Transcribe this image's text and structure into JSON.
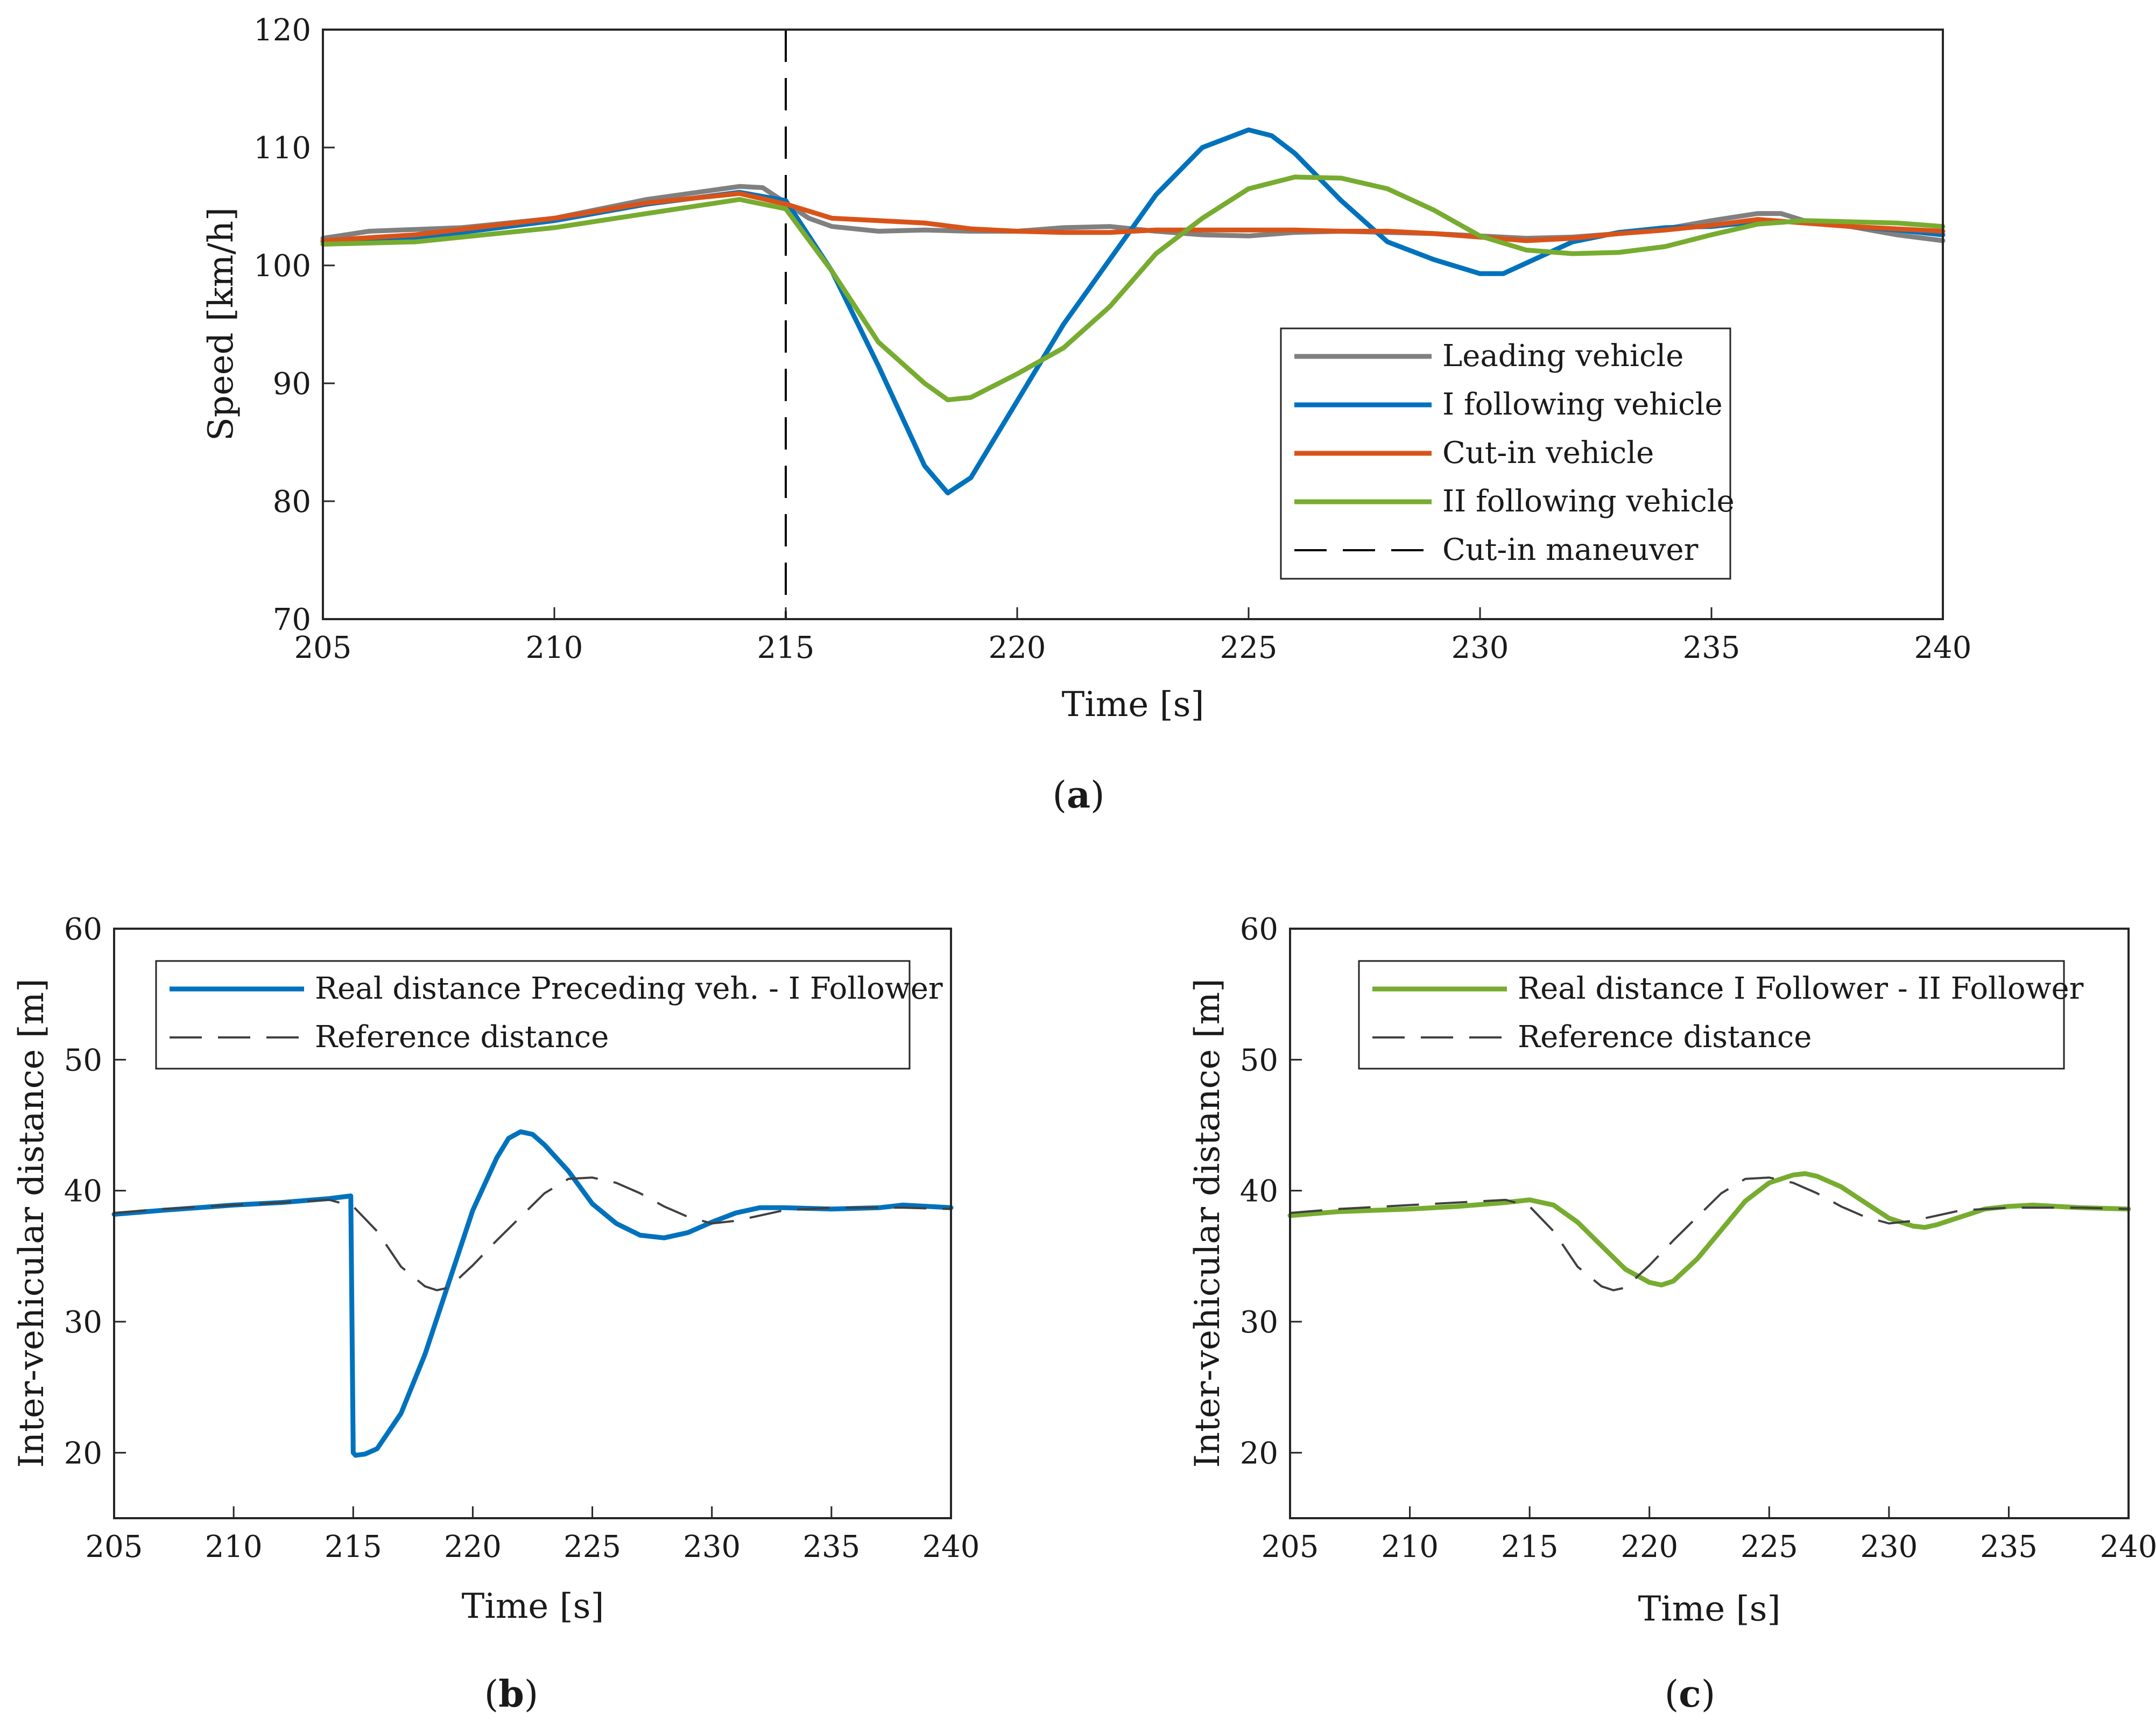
{
  "colors": {
    "leading": "#808080",
    "follower1": "#0072BD",
    "cutin": "#D95319",
    "follower2": "#77AC30",
    "reference": "#404040",
    "maneuver": "#000000"
  },
  "chart_data": [
    {
      "id": "a",
      "type": "line",
      "caption_open": "(",
      "caption_letter": "a",
      "caption_close": ")",
      "xlabel": "Time [s]",
      "ylabel": "Speed [km/h]",
      "xlim": [
        205,
        240
      ],
      "ylim": [
        70,
        120
      ],
      "xticks": [
        205,
        210,
        215,
        220,
        225,
        230,
        235,
        240
      ],
      "yticks": [
        70,
        80,
        90,
        100,
        110,
        120
      ],
      "legend_position": "center-right",
      "vline": {
        "x": 215,
        "label": "Cut-in maneuver"
      },
      "series": [
        {
          "name": "Leading vehicle",
          "color_key": "leading",
          "x": [
            205,
            206,
            208,
            210,
            212,
            214,
            214.5,
            215,
            215.5,
            216,
            217,
            218,
            219,
            220,
            221,
            222,
            223,
            224,
            225,
            226,
            227,
            228,
            229,
            230,
            231,
            232,
            233,
            234,
            235,
            236,
            236.5,
            237,
            238,
            239,
            240
          ],
          "y": [
            102.3,
            102.9,
            103.2,
            104.0,
            105.6,
            106.7,
            106.6,
            105.3,
            104.0,
            103.3,
            102.9,
            103.0,
            102.9,
            102.9,
            103.2,
            103.3,
            102.9,
            102.6,
            102.5,
            102.8,
            102.9,
            102.8,
            102.7,
            102.5,
            102.3,
            102.4,
            102.7,
            103.1,
            103.8,
            104.4,
            104.4,
            103.8,
            103.3,
            102.6,
            102.1
          ]
        },
        {
          "name": "I following vehicle",
          "color_key": "follower1",
          "x": [
            205,
            207,
            210,
            212,
            214,
            215,
            216,
            217,
            218,
            218.5,
            219,
            220,
            221,
            222,
            223,
            224,
            225,
            225.5,
            226,
            227,
            228,
            229,
            230,
            230.5,
            231,
            232,
            233,
            234,
            235,
            236,
            237,
            238,
            239,
            240
          ],
          "y": [
            102.0,
            102.3,
            103.8,
            105.2,
            106.2,
            105.5,
            99.5,
            91.5,
            83.0,
            80.7,
            82.0,
            88.5,
            95.0,
            100.5,
            106.0,
            110.0,
            111.5,
            111.0,
            109.5,
            105.5,
            102.0,
            100.5,
            99.3,
            99.3,
            100.2,
            102.0,
            102.8,
            103.2,
            103.3,
            103.7,
            103.7,
            103.3,
            103.0,
            102.6
          ]
        },
        {
          "name": "Cut-in vehicle",
          "color_key": "cutin",
          "x": [
            205,
            207,
            210,
            212,
            214,
            215,
            216,
            217,
            218,
            219,
            220,
            221,
            222,
            223,
            224,
            225,
            226,
            227,
            228,
            229,
            230,
            231,
            232,
            233,
            234,
            235,
            236,
            237,
            238,
            239,
            240
          ],
          "y": [
            102.1,
            102.6,
            104.0,
            105.3,
            106.1,
            105.2,
            104.0,
            103.8,
            103.6,
            103.1,
            102.9,
            102.8,
            102.8,
            103.0,
            103.0,
            103.0,
            103.0,
            102.9,
            102.9,
            102.7,
            102.4,
            102.1,
            102.3,
            102.7,
            103.0,
            103.4,
            103.9,
            103.6,
            103.3,
            103.1,
            102.9
          ]
        },
        {
          "name": "II following vehicle",
          "color_key": "follower2",
          "x": [
            205,
            207,
            210,
            212,
            214,
            215,
            216,
            217,
            218,
            218.5,
            219,
            220,
            221,
            222,
            223,
            224,
            225,
            226,
            227,
            228,
            229,
            230,
            231,
            232,
            233,
            234,
            235,
            236,
            237,
            238,
            239,
            240
          ],
          "y": [
            101.8,
            102.0,
            103.2,
            104.4,
            105.6,
            104.8,
            99.5,
            93.5,
            90.0,
            88.6,
            88.8,
            90.8,
            93.0,
            96.5,
            101.0,
            104.0,
            106.5,
            107.5,
            107.4,
            106.5,
            104.7,
            102.5,
            101.3,
            101.0,
            101.1,
            101.6,
            102.6,
            103.5,
            103.8,
            103.7,
            103.6,
            103.3
          ]
        }
      ]
    },
    {
      "id": "b",
      "type": "line",
      "caption_open": "(",
      "caption_letter": "b",
      "caption_close": ")",
      "xlabel": "Time [s]",
      "ylabel": "Inter-vehicular distance [m]",
      "xlim": [
        205,
        240
      ],
      "ylim": [
        15,
        60
      ],
      "xticks": [
        205,
        210,
        215,
        220,
        225,
        230,
        235,
        240
      ],
      "yticks": [
        20,
        30,
        40,
        50,
        60
      ],
      "legend_position": "top",
      "series": [
        {
          "name": "Real distance Preceding veh. - I Follower",
          "color_key": "follower1",
          "x": [
            205,
            207,
            210,
            212,
            214,
            214.9,
            215.0,
            215.1,
            215.5,
            216,
            217,
            218,
            219,
            220,
            221,
            221.5,
            222,
            222.5,
            223,
            224,
            225,
            226,
            227,
            228,
            229,
            230,
            231,
            232,
            233,
            235,
            237,
            238,
            240
          ],
          "y": [
            38.2,
            38.5,
            38.9,
            39.1,
            39.4,
            39.6,
            20.0,
            19.8,
            19.9,
            20.3,
            23.0,
            27.5,
            33.0,
            38.5,
            42.5,
            44.0,
            44.5,
            44.3,
            43.5,
            41.5,
            39.0,
            37.5,
            36.6,
            36.4,
            36.8,
            37.6,
            38.3,
            38.7,
            38.7,
            38.6,
            38.7,
            38.9,
            38.7
          ]
        },
        {
          "name": "Reference distance",
          "color_key": "reference",
          "dashed": true,
          "x": [
            205,
            207,
            210,
            212,
            214,
            215,
            216,
            217,
            218,
            218.5,
            219,
            220,
            221,
            222,
            223,
            224,
            225,
            226,
            227,
            228,
            229,
            230,
            231,
            232,
            233,
            235,
            237,
            238,
            240
          ],
          "y": [
            38.3,
            38.6,
            38.9,
            39.1,
            39.3,
            38.8,
            36.9,
            34.2,
            32.7,
            32.4,
            32.6,
            34.3,
            36.2,
            38.0,
            39.8,
            40.9,
            41.0,
            40.6,
            39.8,
            38.8,
            38.0,
            37.5,
            37.7,
            38.1,
            38.5,
            38.7,
            38.7,
            38.7,
            38.6
          ]
        }
      ]
    },
    {
      "id": "c",
      "type": "line",
      "caption_open": "(",
      "caption_letter": "c",
      "caption_close": ")",
      "xlabel": "Time [s]",
      "ylabel": "Inter-vehicular distance [m]",
      "xlim": [
        205,
        240
      ],
      "ylim": [
        15,
        60
      ],
      "xticks": [
        205,
        210,
        215,
        220,
        225,
        230,
        235,
        240
      ],
      "yticks": [
        20,
        30,
        40,
        50,
        60
      ],
      "legend_position": "top",
      "series": [
        {
          "name": "Real distance I Follower - II Follower",
          "color_key": "follower2",
          "x": [
            205,
            207,
            210,
            212,
            214,
            215,
            216,
            217,
            218,
            219,
            220,
            220.5,
            221,
            222,
            223,
            224,
            225,
            226,
            226.5,
            227,
            228,
            229,
            230,
            231,
            231.5,
            232,
            233,
            234,
            235,
            236,
            237,
            238,
            240
          ],
          "y": [
            38.1,
            38.4,
            38.6,
            38.8,
            39.1,
            39.3,
            38.9,
            37.6,
            35.8,
            34.0,
            33.0,
            32.8,
            33.1,
            34.8,
            37.0,
            39.2,
            40.6,
            41.2,
            41.3,
            41.1,
            40.3,
            39.1,
            37.9,
            37.3,
            37.2,
            37.4,
            38.0,
            38.6,
            38.8,
            38.9,
            38.8,
            38.7,
            38.6
          ]
        },
        {
          "name": "Reference distance",
          "color_key": "reference",
          "dashed": true,
          "x": [
            205,
            207,
            210,
            212,
            214,
            215,
            216,
            217,
            218,
            218.5,
            219,
            220,
            221,
            222,
            223,
            224,
            225,
            226,
            227,
            228,
            229,
            230,
            231,
            232,
            233,
            235,
            237,
            238,
            240
          ],
          "y": [
            38.3,
            38.6,
            38.9,
            39.1,
            39.3,
            38.8,
            36.9,
            34.2,
            32.7,
            32.4,
            32.6,
            34.3,
            36.2,
            38.0,
            39.8,
            40.9,
            41.0,
            40.6,
            39.8,
            38.8,
            38.0,
            37.5,
            37.7,
            38.1,
            38.5,
            38.7,
            38.7,
            38.7,
            38.6
          ]
        }
      ]
    }
  ]
}
